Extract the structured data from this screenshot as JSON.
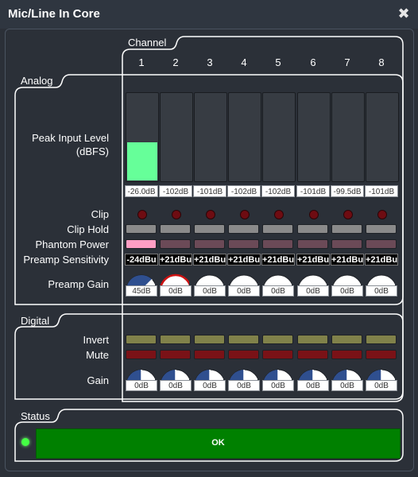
{
  "window": {
    "title": "Mic/Line In Core",
    "close_glyph": "✖"
  },
  "groups": {
    "channel": "Channel",
    "analog": "Analog",
    "digital": "Digital",
    "status": "Status"
  },
  "channels": [
    "1",
    "2",
    "3",
    "4",
    "5",
    "6",
    "7",
    "8"
  ],
  "labels": {
    "peak_input_level": "Peak Input Level",
    "dbfs": "(dBFS)",
    "clip": "Clip",
    "clip_hold": "Clip Hold",
    "phantom_power": "Phantom Power",
    "preamp_sensitivity": "Preamp Sensitivity",
    "preamp_gain": "Preamp Gain",
    "invert": "Invert",
    "mute": "Mute",
    "gain": "Gain"
  },
  "peak_levels": [
    "-26.0dB",
    "-102dB",
    "-101dB",
    "-102dB",
    "-102dB",
    "-101dB",
    "-99.5dB",
    "-101dB"
  ],
  "peak_fill_fraction": [
    0.44,
    0,
    0,
    0,
    0,
    0,
    0,
    0
  ],
  "phantom_power_on": [
    true,
    false,
    false,
    false,
    false,
    false,
    false,
    false
  ],
  "preamp_sensitivity": [
    "-24dBu",
    "+21dBu",
    "+21dBu",
    "+21dBu",
    "+21dBu",
    "+21dBu",
    "+21dBu",
    "+21dBu"
  ],
  "preamp_gain": [
    "45dB",
    "0dB",
    "0dB",
    "0dB",
    "0dB",
    "0dB",
    "0dB",
    "0dB"
  ],
  "preamp_gain_fraction": [
    0.75,
    0,
    0,
    0,
    0,
    0,
    0,
    0
  ],
  "preamp_gain_selected": 1,
  "digital_gain": [
    "0dB",
    "0dB",
    "0dB",
    "0dB",
    "0dB",
    "0dB",
    "0dB",
    "0dB"
  ],
  "digital_gain_fraction": [
    0.5,
    0.5,
    0.5,
    0.5,
    0.5,
    0.5,
    0.5,
    0.5
  ],
  "status": {
    "text": "OK",
    "led_color": "#44ff44",
    "color": "#008000"
  },
  "colors": {
    "meter_fill": "#66ff99",
    "knob_fill": "#2f4f8f",
    "selected_ring": "#cc1111"
  }
}
